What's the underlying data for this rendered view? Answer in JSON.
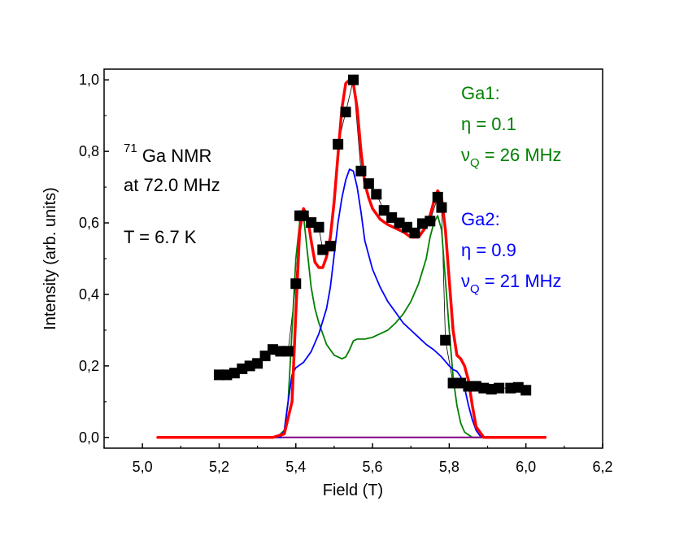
{
  "chart_data": {
    "type": "line",
    "xlabel": "Field (T)",
    "ylabel": "Intensity (arb. units)",
    "xlim": [
      4.9,
      6.2
    ],
    "ylim": [
      -0.03,
      1.03
    ],
    "xticks": [
      5.0,
      5.2,
      5.4,
      5.6,
      5.8,
      6.0,
      6.2
    ],
    "xtick_labels": [
      "5,0",
      "5,2",
      "5,4",
      "5,6",
      "5,8",
      "6,0",
      "6,2"
    ],
    "yticks": [
      0.0,
      0.2,
      0.4,
      0.6,
      0.8,
      1.0
    ],
    "ytick_labels": [
      "0,0",
      "0,2",
      "0,4",
      "0,6",
      "0,8",
      "1,0"
    ],
    "grid": false,
    "annotations": {
      "nucleus_mass": "71",
      "nucleus_text": "Ga NMR",
      "frequency": "at 72.0 MHz",
      "temperature": "T = 6.7 K",
      "ga1_title": "Ga1:",
      "ga1_eta": "η = 0.1",
      "ga1_nu": "ν",
      "ga1_nu_sub": "Q",
      "ga1_nu_val": " = 26 MHz",
      "ga2_title": "Ga2:",
      "ga2_eta": "η = 0.9",
      "ga2_nu": "ν",
      "ga2_nu_sub": "Q",
      "ga2_nu_val": " = 21 MHz"
    },
    "series": [
      {
        "kind": "scatter",
        "color": "#000000",
        "x": [
          5.2,
          5.22,
          5.24,
          5.26,
          5.28,
          5.3,
          5.32,
          5.34,
          5.36,
          5.38,
          5.4,
          5.41,
          5.42,
          5.44,
          5.46,
          5.47,
          5.49,
          5.51,
          5.53,
          5.55,
          5.57,
          5.59,
          5.61,
          5.63,
          5.65,
          5.67,
          5.69,
          5.71,
          5.73,
          5.75,
          5.77,
          5.78,
          5.79,
          5.81,
          5.83,
          5.85,
          5.87,
          5.89,
          5.91,
          5.93,
          5.96,
          5.98,
          6.0
        ],
        "y": [
          0.175,
          0.175,
          0.18,
          0.192,
          0.2,
          0.207,
          0.228,
          0.246,
          0.241,
          0.241,
          0.43,
          0.62,
          0.62,
          0.601,
          0.588,
          0.525,
          0.535,
          0.82,
          0.91,
          1.0,
          0.745,
          0.71,
          0.68,
          0.635,
          0.615,
          0.6,
          0.588,
          0.572,
          0.598,
          0.605,
          0.672,
          0.643,
          0.272,
          0.152,
          0.152,
          0.143,
          0.143,
          0.138,
          0.135,
          0.138,
          0.138,
          0.14,
          0.132
        ]
      },
      {
        "name": "",
        "kind": "line",
        "color": "#ff0000",
        "width": 3.5,
        "x": [
          5.04,
          5.34,
          5.37,
          5.39,
          5.4,
          5.41,
          5.42,
          5.43,
          5.44,
          5.45,
          5.46,
          5.47,
          5.48,
          5.49,
          5.5,
          5.51,
          5.52,
          5.53,
          5.54,
          5.55,
          5.56,
          5.57,
          5.58,
          5.59,
          5.6,
          5.62,
          5.64,
          5.66,
          5.68,
          5.7,
          5.72,
          5.74,
          5.75,
          5.76,
          5.77,
          5.78,
          5.79,
          5.8,
          5.81,
          5.82,
          5.83,
          5.84,
          5.85,
          5.86,
          5.87,
          5.89,
          6.05
        ],
        "y": [
          0.0,
          0.0,
          0.01,
          0.1,
          0.35,
          0.58,
          0.64,
          0.62,
          0.55,
          0.49,
          0.475,
          0.475,
          0.505,
          0.56,
          0.66,
          0.79,
          0.92,
          0.99,
          1.0,
          0.99,
          0.92,
          0.8,
          0.71,
          0.67,
          0.64,
          0.61,
          0.595,
          0.585,
          0.575,
          0.56,
          0.56,
          0.59,
          0.62,
          0.66,
          0.69,
          0.67,
          0.58,
          0.44,
          0.3,
          0.23,
          0.22,
          0.2,
          0.16,
          0.09,
          0.03,
          0.0,
          0.0
        ]
      },
      {
        "name": "",
        "kind": "line",
        "color": "#008000",
        "width": 1.8,
        "x": [
          5.04,
          5.35,
          5.37,
          5.38,
          5.39,
          5.4,
          5.41,
          5.42,
          5.43,
          5.44,
          5.45,
          5.46,
          5.48,
          5.5,
          5.52,
          5.53,
          5.54,
          5.55,
          5.56,
          5.58,
          5.6,
          5.62,
          5.64,
          5.66,
          5.68,
          5.7,
          5.72,
          5.74,
          5.75,
          5.76,
          5.77,
          5.78,
          5.79,
          5.8,
          5.81,
          5.82,
          5.83,
          5.84,
          5.86,
          6.05
        ],
        "y": [
          0.0,
          0.0,
          0.02,
          0.1,
          0.3,
          0.5,
          0.6,
          0.62,
          0.52,
          0.42,
          0.36,
          0.32,
          0.26,
          0.23,
          0.22,
          0.225,
          0.245,
          0.27,
          0.275,
          0.275,
          0.28,
          0.29,
          0.3,
          0.32,
          0.345,
          0.38,
          0.43,
          0.5,
          0.56,
          0.6,
          0.62,
          0.58,
          0.44,
          0.3,
          0.17,
          0.09,
          0.04,
          0.015,
          0.0,
          0.0
        ]
      },
      {
        "name": "",
        "kind": "line",
        "color": "#0000ff",
        "width": 1.8,
        "x": [
          5.04,
          5.36,
          5.37,
          5.38,
          5.39,
          5.4,
          5.42,
          5.44,
          5.46,
          5.48,
          5.49,
          5.5,
          5.51,
          5.52,
          5.53,
          5.54,
          5.55,
          5.56,
          5.57,
          5.58,
          5.6,
          5.62,
          5.64,
          5.66,
          5.68,
          5.7,
          5.72,
          5.74,
          5.76,
          5.78,
          5.8,
          5.81,
          5.82,
          5.83,
          5.84,
          5.85,
          5.86,
          5.87,
          5.88,
          5.9,
          6.05
        ],
        "y": [
          0.0,
          0.0,
          0.02,
          0.1,
          0.175,
          0.195,
          0.21,
          0.24,
          0.29,
          0.36,
          0.42,
          0.51,
          0.6,
          0.67,
          0.72,
          0.75,
          0.745,
          0.7,
          0.63,
          0.55,
          0.47,
          0.42,
          0.38,
          0.35,
          0.32,
          0.3,
          0.28,
          0.26,
          0.245,
          0.225,
          0.2,
          0.19,
          0.185,
          0.17,
          0.14,
          0.09,
          0.05,
          0.02,
          0.005,
          0.0,
          0.0
        ]
      },
      {
        "name": "",
        "kind": "line",
        "color": "#800080",
        "width": 2.0,
        "x": [
          5.04,
          5.36,
          6.05
        ],
        "y": [
          0.0,
          0.0,
          0.0
        ]
      }
    ]
  }
}
